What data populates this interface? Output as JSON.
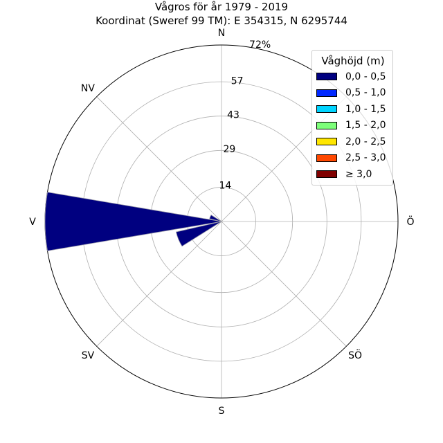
{
  "chart_data": {
    "type": "wind-rose",
    "title": "Vågros för år 1979 - 2019",
    "subtitle": "Koordinat (Sweref 99 TM): E 354315, N 6295744",
    "directions": [
      "N",
      "NV",
      "V",
      "SV",
      "S",
      "SÖ",
      "Ö"
    ],
    "radial_ticks": [
      "14",
      "29",
      "43",
      "57",
      "72%"
    ],
    "radial_tick_values": [
      14,
      29,
      43,
      57,
      72
    ],
    "rmax": 72,
    "grid": true,
    "legend": {
      "title": "Våghöjd (m)",
      "placement": "top-right",
      "items": [
        {
          "label": "0,0 - 0,5",
          "color": "#000080"
        },
        {
          "label": "0,5 - 1,0",
          "color": "#0028ff"
        },
        {
          "label": "1,0 - 1,5",
          "color": "#00d4ff"
        },
        {
          "label": "1,5 - 2,0",
          "color": "#7dff7a"
        },
        {
          "label": "2,0 - 2,5",
          "color": "#ffe600"
        },
        {
          "label": "2,5 - 3,0",
          "color": "#ff4800"
        },
        {
          "label": "≥ 3,0",
          "color": "#800000"
        }
      ]
    },
    "series": [
      {
        "name": "0,0 - 0,5",
        "color": "#000080",
        "bars": [
          {
            "direction_deg": 270,
            "value": 72
          },
          {
            "direction_deg": 247.5,
            "value": 19
          },
          {
            "direction_deg": 292.5,
            "value": 5
          }
        ]
      }
    ]
  }
}
